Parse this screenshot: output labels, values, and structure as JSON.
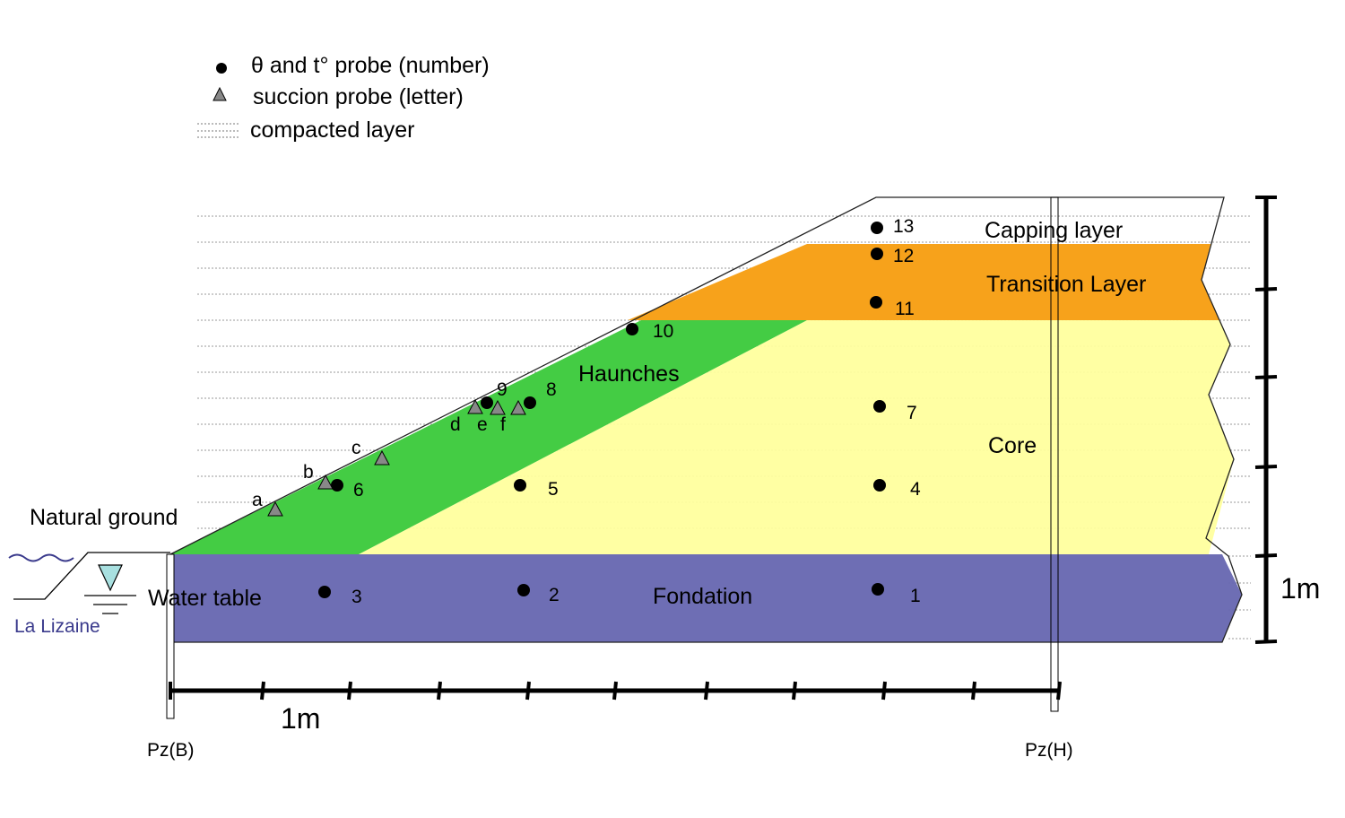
{
  "legend": {
    "probe_theta_t": "θ and t° probe (number)",
    "probe_suction": "succion probe (letter)",
    "compacted_layer": "compacted layer"
  },
  "colors": {
    "capping": "#ffffff",
    "transition": "#f7a21b",
    "haunches": "#44cc44",
    "core": "#ffff9e",
    "fondation": "#6666b0",
    "water": "#a8e0e0",
    "river": "#3a3a8c"
  },
  "zones": {
    "capping": "Capping layer",
    "transition": "Transition Layer",
    "haunches": "Haunches",
    "core": "Core",
    "fondation": "Fondation"
  },
  "labels": {
    "natural_ground": "Natural ground",
    "water_table": "Water table",
    "river": "La Lizaine",
    "pz_b": "Pz(B)",
    "pz_h": "Pz(H)",
    "scale_h": "1m",
    "scale_v": "1m"
  },
  "probes_number": [
    "1",
    "2",
    "3",
    "4",
    "5",
    "6",
    "7",
    "8",
    "9",
    "10",
    "11",
    "12",
    "13"
  ],
  "probes_letter": [
    "a",
    "b",
    "c",
    "d",
    "e",
    "f"
  ]
}
